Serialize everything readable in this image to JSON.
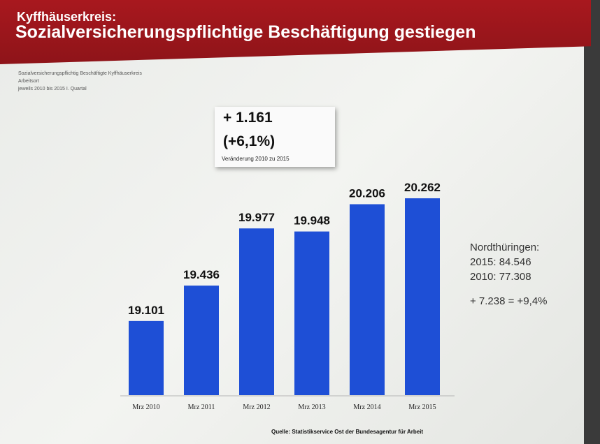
{
  "header": {
    "subtitle": "Kyffhäuserkreis:",
    "title": "Sozialversicherungspflichtige Beschäftigung gestiegen"
  },
  "meta": [
    "Sozialversicherungspflichtig Beschäftigte Kyffhäuserkreis",
    "Arbeitsort",
    "jeweils 2010 bis 2015 I. Quartal"
  ],
  "callout": {
    "abs": "+ 1.161",
    "pct": "(+6,1%)",
    "label": "Veränderung 2010 zu 2015"
  },
  "side": {
    "title": "Nordthüringen:",
    "line1": "2015: 84.546",
    "line2": "2010: 77.308",
    "change": "+ 7.238 = +9,4%"
  },
  "source": "Quelle: Statistikservice Ost der Bundesagentur für Arbeit",
  "colors": {
    "bar": "#1e4fd6",
    "header": "#9c161b"
  },
  "chart_data": {
    "type": "bar",
    "title": "Sozialversicherungspflichtige Beschäftigung gestiegen",
    "categories": [
      "Mrz 2010",
      "Mrz 2011",
      "Mrz 2012",
      "Mrz 2013",
      "Mrz 2014",
      "Mrz 2015"
    ],
    "values": [
      19101,
      19436,
      19977,
      19948,
      20206,
      20262
    ],
    "labels": [
      "19.101",
      "19.436",
      "19.977",
      "19.948",
      "20.206",
      "20.262"
    ],
    "xlabel": "",
    "ylabel": "",
    "ylim": [
      18400,
      20500
    ],
    "grid": false
  }
}
